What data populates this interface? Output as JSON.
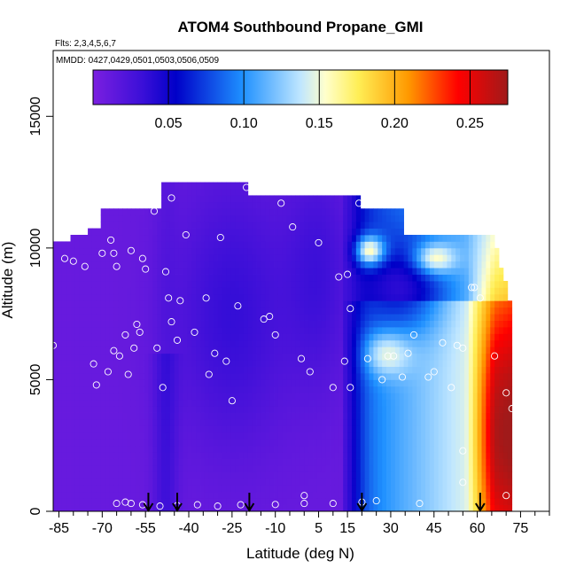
{
  "chart_data": {
    "type": "heatmap",
    "title": "ATOM4 Southbound Propane_GMI",
    "flights_note": "Flts: 2,3,4,5,6,7",
    "dates_note": "MMDD: 0427,0429,0501,0503,0506,0509",
    "xlabel": "Latitude (deg N)",
    "ylabel": "Altitude (m)",
    "x_ticks": [
      "-85",
      "-70",
      "-55",
      "-40",
      "-25",
      "-10",
      "5",
      "15",
      "30",
      "45",
      "60",
      "75"
    ],
    "x_tick_values": [
      -85,
      -70,
      -55,
      -40,
      -25,
      -10,
      5,
      15,
      30,
      45,
      60,
      75
    ],
    "y_ticks": [
      "0",
      "5000",
      "10000",
      "15000"
    ],
    "y_tick_values": [
      0,
      5000,
      10000,
      15000
    ],
    "xlim": [
      -87,
      85
    ],
    "ylim": [
      0,
      17500
    ],
    "colorbar": {
      "range": [
        0,
        0.275
      ],
      "tick_labels": [
        "0.05",
        "0.10",
        "0.15",
        "0.20",
        "0.25"
      ],
      "tick_values": [
        0.05,
        0.1,
        0.15,
        0.2,
        0.25
      ],
      "colors": [
        "#7b1fe0",
        "#0000c8",
        "#1e90ff",
        "#e6f5ff",
        "#ffff80",
        "#ff9900",
        "#ff0000",
        "#aa1111"
      ]
    },
    "profile_arrow_latitudes": [
      -54,
      -44,
      -19,
      20,
      61
    ],
    "sample_points": [
      [
        -87,
        6300
      ],
      [
        -83,
        9600
      ],
      [
        -80,
        9500
      ],
      [
        -76,
        9300
      ],
      [
        -73,
        5600
      ],
      [
        -72,
        4800
      ],
      [
        -70,
        9800
      ],
      [
        -68,
        5300
      ],
      [
        -67,
        10300
      ],
      [
        -66,
        6100
      ],
      [
        -66,
        9800
      ],
      [
        -65,
        9300
      ],
      [
        -64,
        5900
      ],
      [
        -62,
        6700
      ],
      [
        -61,
        5200
      ],
      [
        -60,
        9900
      ],
      [
        -59,
        6200
      ],
      [
        -58,
        7100
      ],
      [
        -57,
        6800
      ],
      [
        -56,
        9600
      ],
      [
        -55,
        9200
      ],
      [
        -54,
        11800
      ],
      [
        -52,
        11400
      ],
      [
        -51,
        6200
      ],
      [
        -49,
        4700
      ],
      [
        -48,
        9100
      ],
      [
        -47,
        8100
      ],
      [
        -46,
        7200
      ],
      [
        -46,
        11900
      ],
      [
        -44,
        6500
      ],
      [
        -43,
        8000
      ],
      [
        -41,
        10500
      ],
      [
        -38,
        6800
      ],
      [
        -34,
        8100
      ],
      [
        -33,
        5200
      ],
      [
        -31,
        6000
      ],
      [
        -29,
        10400
      ],
      [
        -27,
        5700
      ],
      [
        -25,
        4200
      ],
      [
        -23,
        7800
      ],
      [
        -20,
        12300
      ],
      [
        -14,
        7300
      ],
      [
        -12,
        7400
      ],
      [
        -10,
        6700
      ],
      [
        -8,
        11700
      ],
      [
        -4,
        10800
      ],
      [
        -1,
        5800
      ],
      [
        2,
        5300
      ],
      [
        5,
        10200
      ],
      [
        10,
        4700
      ],
      [
        12,
        8900
      ],
      [
        14,
        5700
      ],
      [
        15,
        9000
      ],
      [
        16,
        4700
      ],
      [
        16,
        7700
      ],
      [
        19,
        11700
      ],
      [
        22,
        5800
      ],
      [
        27,
        5000
      ],
      [
        29,
        5900
      ],
      [
        31,
        5900
      ],
      [
        34,
        5100
      ],
      [
        36,
        6000
      ],
      [
        38,
        6700
      ],
      [
        43,
        5100
      ],
      [
        45,
        5300
      ],
      [
        48,
        6400
      ],
      [
        51,
        4700
      ],
      [
        53,
        6300
      ],
      [
        55,
        6200
      ],
      [
        58,
        8500
      ],
      [
        59,
        8500
      ],
      [
        61,
        8100
      ],
      [
        66,
        5900
      ],
      [
        70,
        4500
      ],
      [
        -65,
        300
      ],
      [
        -62,
        350
      ],
      [
        -60,
        300
      ],
      [
        -56,
        250
      ],
      [
        -50,
        200
      ],
      [
        -44,
        220
      ],
      [
        -37,
        250
      ],
      [
        -30,
        200
      ],
      [
        -22,
        250
      ],
      [
        -10,
        260
      ],
      [
        0,
        600
      ],
      [
        0,
        300
      ],
      [
        10,
        300
      ],
      [
        20,
        350
      ],
      [
        25,
        400
      ],
      [
        40,
        300
      ],
      [
        55,
        1100
      ],
      [
        55,
        2300
      ],
      [
        70,
        600
      ],
      [
        72,
        3900
      ]
    ]
  }
}
